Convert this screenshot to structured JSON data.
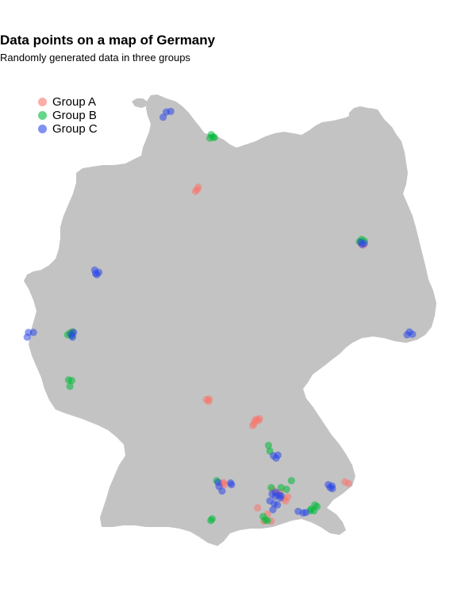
{
  "title": "Data points on a map of Germany",
  "subtitle": "Randomly generated data in three groups",
  "map": {
    "land_color": "#c3c3c3",
    "background": "#ffffff"
  },
  "legend": {
    "items": [
      {
        "label": "Group A",
        "color": "#F8766D"
      },
      {
        "label": "Group B",
        "color": "#00BA38"
      },
      {
        "label": "Group C",
        "color": "#2D48E8"
      }
    ]
  },
  "chart_data": {
    "type": "scatter",
    "title": "Data points on a map of Germany",
    "subtitle": "Randomly generated data in three groups",
    "xlabel": "",
    "ylabel": "",
    "grid": false,
    "legend_placement": "top-left",
    "coordinate_system": "longitude / latitude",
    "xlim": [
      5.8,
      15.1
    ],
    "ylim": [
      47.2,
      55.1
    ],
    "series": [
      {
        "name": "Group A",
        "color": "#F8766D",
        "points": [
          {
            "lon": 9.74,
            "lat": 53.43
          },
          {
            "lon": 9.7,
            "lat": 53.4
          },
          {
            "lon": 9.76,
            "lat": 53.47
          },
          {
            "lon": 13.38,
            "lat": 52.5
          },
          {
            "lon": 13.43,
            "lat": 52.47
          },
          {
            "lon": 6.96,
            "lat": 50.93
          },
          {
            "lon": 6.94,
            "lat": 50.96
          },
          {
            "lon": 9.94,
            "lat": 49.8
          },
          {
            "lon": 10.0,
            "lat": 49.81
          },
          {
            "lon": 9.99,
            "lat": 49.77
          },
          {
            "lon": 11.05,
            "lat": 49.46
          },
          {
            "lon": 11.12,
            "lat": 49.47
          },
          {
            "lon": 11.02,
            "lat": 49.43
          },
          {
            "lon": 11.0,
            "lat": 49.38
          },
          {
            "lon": 10.97,
            "lat": 49.35
          },
          {
            "lon": 11.1,
            "lat": 49.44
          },
          {
            "lon": 10.29,
            "lat": 48.35
          },
          {
            "lon": 10.35,
            "lat": 48.33
          },
          {
            "lon": 10.32,
            "lat": 48.37
          },
          {
            "lon": 11.42,
            "lat": 48.24
          },
          {
            "lon": 11.5,
            "lat": 48.18
          },
          {
            "lon": 11.58,
            "lat": 48.2
          },
          {
            "lon": 11.75,
            "lat": 48.12
          },
          {
            "lon": 11.7,
            "lat": 48.05
          },
          {
            "lon": 11.66,
            "lat": 48.09
          },
          {
            "lon": 11.52,
            "lat": 48.17
          },
          {
            "lon": 11.3,
            "lat": 47.82
          },
          {
            "lon": 11.08,
            "lat": 47.93
          },
          {
            "lon": 11.38,
            "lat": 47.7
          },
          {
            "lon": 11.22,
            "lat": 47.7
          },
          {
            "lon": 13.02,
            "lat": 48.38
          },
          {
            "lon": 13.1,
            "lat": 48.35
          }
        ]
      },
      {
        "name": "Group B",
        "color": "#00BA38",
        "points": [
          {
            "lon": 10.05,
            "lat": 54.38
          },
          {
            "lon": 10.12,
            "lat": 54.33
          },
          {
            "lon": 10.02,
            "lat": 54.32
          },
          {
            "lon": 10.09,
            "lat": 54.34
          },
          {
            "lon": 13.39,
            "lat": 52.57
          },
          {
            "lon": 13.34,
            "lat": 52.53
          },
          {
            "lon": 13.45,
            "lat": 52.54
          },
          {
            "lon": 6.91,
            "lat": 50.95
          },
          {
            "lon": 6.86,
            "lat": 50.92
          },
          {
            "lon": 6.97,
            "lat": 50.97
          },
          {
            "lon": 6.95,
            "lat": 50.9
          },
          {
            "lon": 6.88,
            "lat": 50.14
          },
          {
            "lon": 6.95,
            "lat": 50.13
          },
          {
            "lon": 6.91,
            "lat": 50.03
          },
          {
            "lon": 11.32,
            "lat": 49.01
          },
          {
            "lon": 11.35,
            "lat": 48.91
          },
          {
            "lon": 10.17,
            "lat": 48.4
          },
          {
            "lon": 11.83,
            "lat": 48.4
          },
          {
            "lon": 11.6,
            "lat": 48.28
          },
          {
            "lon": 11.72,
            "lat": 48.25
          },
          {
            "lon": 11.38,
            "lat": 48.28
          },
          {
            "lon": 12.35,
            "lat": 47.98
          },
          {
            "lon": 12.4,
            "lat": 47.95
          },
          {
            "lon": 12.27,
            "lat": 47.91
          },
          {
            "lon": 12.33,
            "lat": 47.88
          },
          {
            "lon": 12.25,
            "lat": 47.88
          },
          {
            "lon": 11.2,
            "lat": 47.78
          },
          {
            "lon": 11.25,
            "lat": 47.72
          },
          {
            "lon": 11.3,
            "lat": 47.71
          },
          {
            "lon": 10.07,
            "lat": 47.74
          },
          {
            "lon": 10.04,
            "lat": 47.71
          }
        ]
      },
      {
        "name": "Group C",
        "color": "#2D48E8",
        "points": [
          {
            "lon": 9.05,
            "lat": 54.77
          },
          {
            "lon": 9.15,
            "lat": 54.78
          },
          {
            "lon": 8.98,
            "lat": 54.68
          },
          {
            "lon": 7.46,
            "lat": 52.04
          },
          {
            "lon": 7.55,
            "lat": 52.0
          },
          {
            "lon": 7.51,
            "lat": 51.96
          },
          {
            "lon": 7.48,
            "lat": 51.98
          },
          {
            "lon": 13.37,
            "lat": 52.52
          },
          {
            "lon": 13.45,
            "lat": 52.5
          },
          {
            "lon": 13.4,
            "lat": 52.48
          },
          {
            "lon": 5.99,
            "lat": 50.96
          },
          {
            "lon": 6.1,
            "lat": 50.96
          },
          {
            "lon": 5.96,
            "lat": 50.88
          },
          {
            "lon": 6.94,
            "lat": 50.92
          },
          {
            "lon": 6.99,
            "lat": 50.96
          },
          {
            "lon": 6.97,
            "lat": 50.88
          },
          {
            "lon": 14.45,
            "lat": 50.97
          },
          {
            "lon": 14.52,
            "lat": 50.93
          },
          {
            "lon": 14.4,
            "lat": 50.92
          },
          {
            "lon": 11.43,
            "lat": 48.83
          },
          {
            "lon": 11.53,
            "lat": 48.84
          },
          {
            "lon": 11.49,
            "lat": 48.79
          },
          {
            "lon": 10.2,
            "lat": 48.37
          },
          {
            "lon": 10.22,
            "lat": 48.3
          },
          {
            "lon": 10.29,
            "lat": 48.22
          },
          {
            "lon": 10.48,
            "lat": 48.36
          },
          {
            "lon": 10.5,
            "lat": 48.33
          },
          {
            "lon": 11.48,
            "lat": 48.2
          },
          {
            "lon": 11.55,
            "lat": 48.15
          },
          {
            "lon": 11.6,
            "lat": 48.14
          },
          {
            "lon": 11.58,
            "lat": 48.1
          },
          {
            "lon": 11.47,
            "lat": 48.13
          },
          {
            "lon": 11.4,
            "lat": 48.17
          },
          {
            "lon": 11.35,
            "lat": 48.05
          },
          {
            "lon": 11.45,
            "lat": 48.0
          },
          {
            "lon": 11.52,
            "lat": 47.98
          },
          {
            "lon": 11.42,
            "lat": 47.9
          },
          {
            "lon": 12.65,
            "lat": 48.33
          },
          {
            "lon": 12.73,
            "lat": 48.31
          },
          {
            "lon": 12.69,
            "lat": 48.28
          },
          {
            "lon": 12.74,
            "lat": 48.26
          },
          {
            "lon": 11.98,
            "lat": 47.87
          },
          {
            "lon": 12.09,
            "lat": 47.84
          },
          {
            "lon": 12.15,
            "lat": 47.85
          }
        ]
      }
    ]
  }
}
